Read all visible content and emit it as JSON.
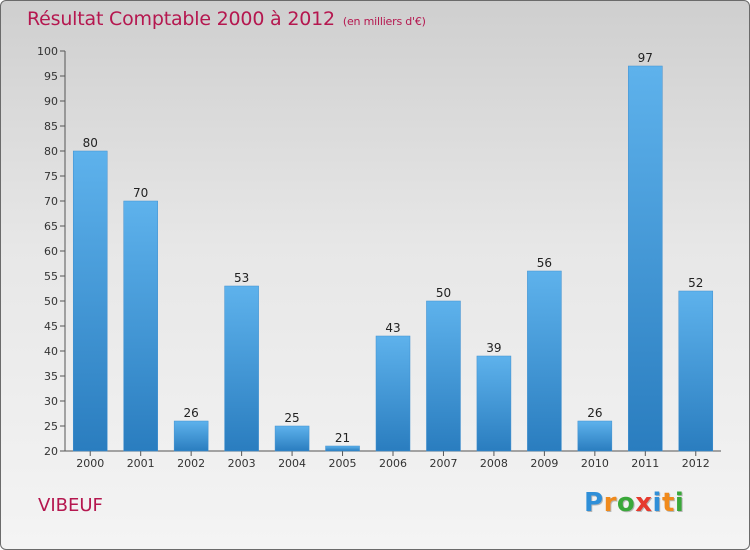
{
  "chart_data": {
    "type": "bar",
    "title": "Résultat Comptable 2000 à 2012",
    "subtitle": "(en milliers d'€)",
    "categories": [
      "2000",
      "2001",
      "2002",
      "2003",
      "2004",
      "2005",
      "2006",
      "2007",
      "2008",
      "2009",
      "2010",
      "2011",
      "2012"
    ],
    "values": [
      80,
      70,
      26,
      53,
      25,
      21,
      43,
      50,
      39,
      56,
      26,
      97,
      52
    ],
    "ylim": [
      20,
      100
    ],
    "yticks": [
      20,
      25,
      30,
      35,
      40,
      45,
      50,
      55,
      60,
      65,
      70,
      75,
      80,
      85,
      90,
      95,
      100
    ],
    "xlabel": "",
    "ylabel": "",
    "grid": false,
    "bar_color": "#4a9fdf"
  },
  "commune": "VIBEUF",
  "brand": {
    "letters": [
      "P",
      "r",
      "o",
      "x",
      "i",
      "t",
      "i"
    ],
    "colors": [
      "#2f8fd8",
      "#f08a1c",
      "#3aa83a",
      "#e63a2e",
      "#2f8fd8",
      "#f08a1c",
      "#3aa83a"
    ]
  }
}
